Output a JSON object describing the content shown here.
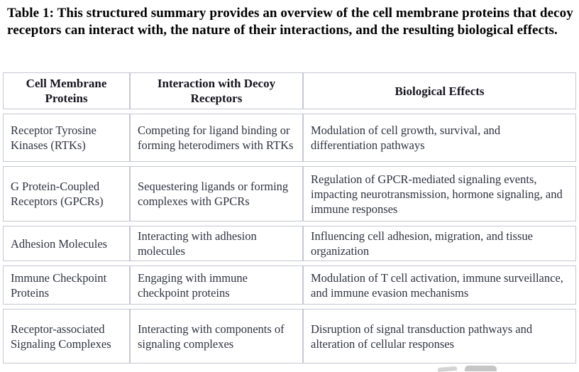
{
  "caption": "Table 1: This structured summary provides an overview of the cell membrane proteins that decoy receptors can interact with, the nature of their interactions, and the resulting biological effects.",
  "table": {
    "headers": [
      "Cell Membrane Proteins",
      "Interaction with Decoy Receptors",
      "Biological Effects"
    ],
    "rows": [
      [
        "Receptor Tyrosine Kinases (RTKs)",
        "Competing for ligand binding or forming heterodimers with RTKs",
        "Modulation of cell growth, survival, and differentiation pathways"
      ],
      [
        "G Protein-Coupled Receptors (GPCRs)",
        "Sequestering ligands or forming complexes with GPCRs",
        "Regulation of GPCR-mediated signaling events, impacting neurotransmission, hormone signaling, and immune responses"
      ],
      [
        "Adhesion Molecules",
        "Interacting with adhesion molecules",
        "Influencing cell adhesion, migration, and tissue organization"
      ],
      [
        "Immune Checkpoint Proteins",
        "Engaging with immune checkpoint proteins",
        "Modulation of T cell activation, immune surveillance, and immune evasion mechanisms"
      ],
      [
        "Receptor-associated Signaling Complexes",
        "Interacting with components of signaling complexes",
        "Disruption of signal transduction pathways and alteration of cellular responses"
      ]
    ]
  },
  "colors": {
    "border": "#c4c8d2",
    "body_text": "#2f3340",
    "header_text": "#15151f",
    "caption_text": "#000000",
    "watermark": "#c9c9c9"
  }
}
